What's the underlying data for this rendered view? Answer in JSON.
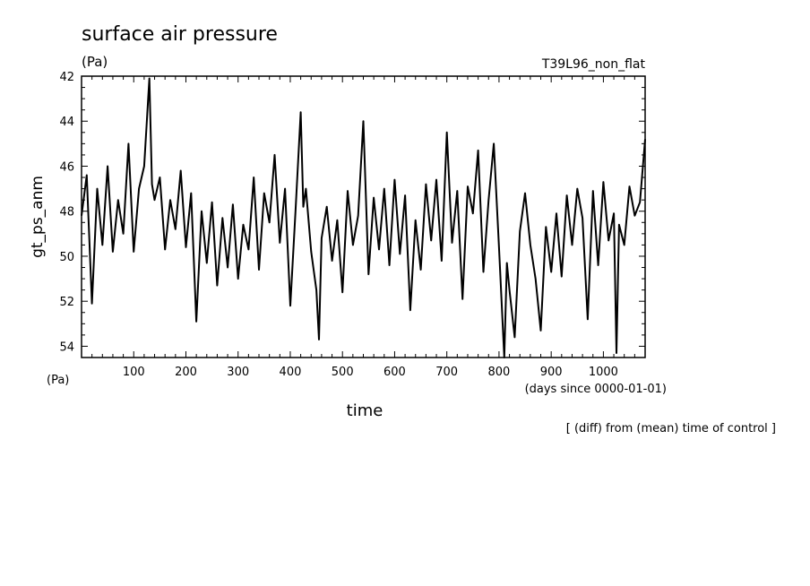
{
  "title": "surface air pressure",
  "title_unit": "(Pa)",
  "experiment": "T39L96_non_flat",
  "footnote": "[ (diff) from (mean) time of control ]",
  "colors": {
    "line": "#000000",
    "background": "#ffffff"
  },
  "chart_data": {
    "type": "line",
    "title": "surface air pressure",
    "xlabel": "time",
    "xunit": "(days since 0000-01-01)",
    "ylabel": "gt_ps_anm",
    "yunit": "(Pa)",
    "xlim": [
      0,
      1080
    ],
    "ylim": [
      54.5,
      42
    ],
    "y_axis_inverted": true,
    "x_ticks": [
      100,
      200,
      300,
      400,
      500,
      600,
      700,
      800,
      900,
      1000
    ],
    "y_ticks": [
      42,
      44,
      46,
      48,
      50,
      52,
      54
    ],
    "grid": false,
    "series": [
      {
        "x": [
          0,
          10,
          20,
          30,
          40,
          50,
          60,
          70,
          80,
          90,
          100,
          110,
          120,
          130,
          135,
          140,
          150,
          160,
          170,
          180,
          190,
          200,
          210,
          220,
          230,
          240,
          250,
          260,
          270,
          280,
          290,
          300,
          310,
          320,
          330,
          340,
          350,
          360,
          370,
          380,
          390,
          400,
          410,
          420,
          425,
          430,
          440,
          450,
          455,
          460,
          470,
          480,
          490,
          500,
          510,
          520,
          530,
          540,
          550,
          560,
          570,
          580,
          590,
          600,
          610,
          620,
          630,
          640,
          650,
          660,
          670,
          680,
          690,
          700,
          710,
          720,
          730,
          740,
          750,
          760,
          770,
          780,
          790,
          800,
          810,
          815,
          820,
          830,
          840,
          850,
          860,
          870,
          880,
          890,
          900,
          910,
          920,
          930,
          940,
          950,
          960,
          970,
          980,
          990,
          1000,
          1010,
          1020,
          1025,
          1030,
          1040,
          1050,
          1060,
          1070,
          1080
        ],
        "y": [
          48.2,
          46.4,
          52.1,
          47.0,
          49.5,
          46.0,
          49.8,
          47.5,
          49.0,
          45.0,
          49.8,
          47.0,
          46.0,
          42.1,
          46.8,
          47.5,
          46.5,
          49.7,
          47.5,
          48.8,
          46.2,
          49.6,
          47.2,
          52.9,
          48.0,
          50.3,
          47.6,
          51.3,
          48.3,
          50.5,
          47.7,
          51.0,
          48.6,
          49.7,
          46.5,
          50.6,
          47.2,
          48.5,
          45.5,
          49.4,
          47.0,
          52.2,
          48.0,
          43.6,
          47.8,
          47.0,
          49.8,
          51.5,
          53.7,
          49.2,
          47.8,
          50.2,
          48.4,
          51.6,
          47.1,
          49.5,
          48.2,
          44.0,
          50.8,
          47.4,
          49.7,
          47.0,
          50.4,
          46.6,
          49.9,
          47.3,
          52.4,
          48.4,
          50.6,
          46.8,
          49.3,
          46.6,
          50.2,
          44.5,
          49.4,
          47.1,
          51.9,
          46.9,
          48.1,
          45.3,
          50.7,
          47.5,
          45.0,
          49.6,
          54.5,
          50.3,
          51.5,
          53.6,
          48.9,
          47.2,
          49.5,
          51.0,
          53.3,
          48.7,
          50.7,
          48.1,
          50.9,
          47.3,
          49.5,
          47.0,
          48.3,
          52.8,
          47.1,
          50.4,
          46.7,
          49.3,
          48.1,
          54.3,
          48.6,
          49.5,
          46.9,
          48.2,
          47.6,
          44.8
        ]
      }
    ]
  }
}
